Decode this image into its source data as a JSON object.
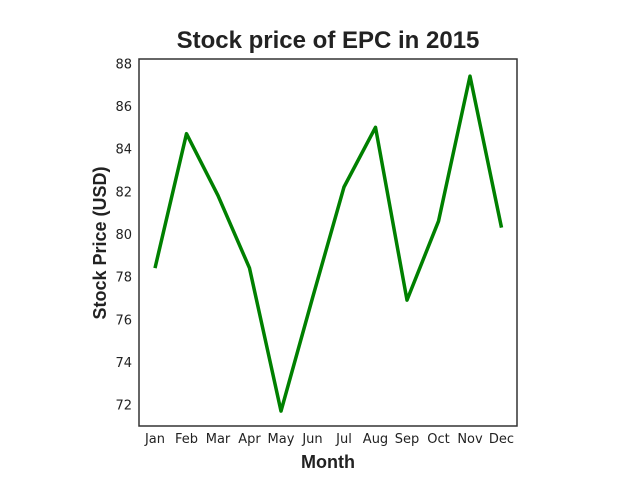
{
  "chart_data": {
    "type": "line",
    "title": "Stock price of EPC in 2015",
    "xlabel": "Month",
    "ylabel": "Stock Price (USD)",
    "categories": [
      "Jan",
      "Feb",
      "Mar",
      "Apr",
      "May",
      "Jun",
      "Jul",
      "Aug",
      "Sep",
      "Oct",
      "Nov",
      "Dec"
    ],
    "series": [
      {
        "values": [
          78.4,
          84.7,
          81.8,
          78.4,
          71.7,
          77.0,
          82.2,
          85.0,
          76.9,
          80.6,
          87.4,
          80.3
        ],
        "color": "#008000"
      }
    ],
    "yticks": [
      "72",
      "74",
      "76",
      "78",
      "80",
      "82",
      "84",
      "86",
      "88"
    ],
    "ylim": [
      71,
      88.2
    ],
    "grid": false,
    "legend": "none"
  }
}
